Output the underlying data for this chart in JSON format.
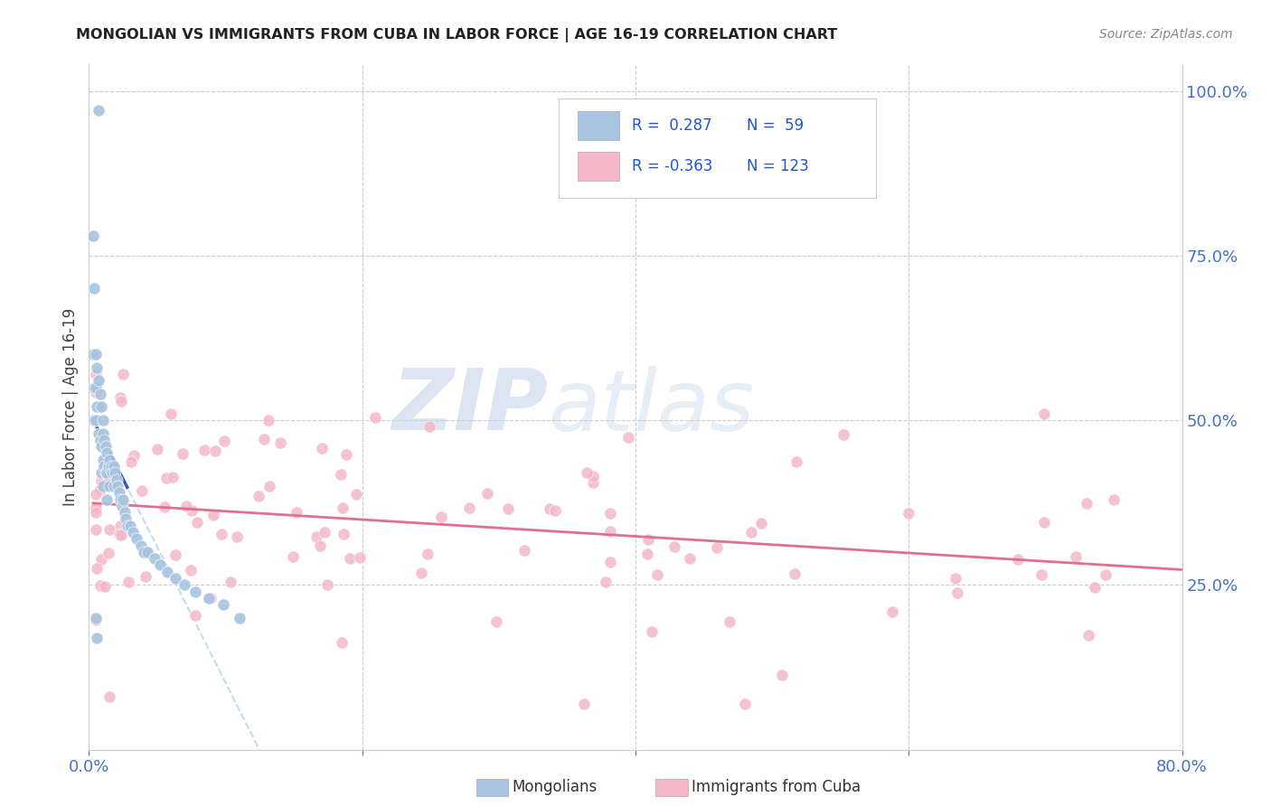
{
  "title": "MONGOLIAN VS IMMIGRANTS FROM CUBA IN LABOR FORCE | AGE 16-19 CORRELATION CHART",
  "source": "Source: ZipAtlas.com",
  "ylabel": "In Labor Force | Age 16-19",
  "xlim": [
    0.0,
    0.8
  ],
  "ylim": [
    0.0,
    1.04
  ],
  "mongolian_color": "#a8c4e0",
  "cuba_color": "#f4b8c8",
  "trend_mongolian_color": "#3355bb",
  "trend_cuba_color": "#e07090",
  "trend_mongolian_dashed_color": "#b8d0ea",
  "watermark_zip": "ZIP",
  "watermark_atlas": "atlas",
  "background_color": "#ffffff",
  "grid_color": "#cccccc",
  "tick_color": "#4472c4",
  "legend_box_color": "#f0f4ff",
  "legend_border_color": "#cccccc"
}
